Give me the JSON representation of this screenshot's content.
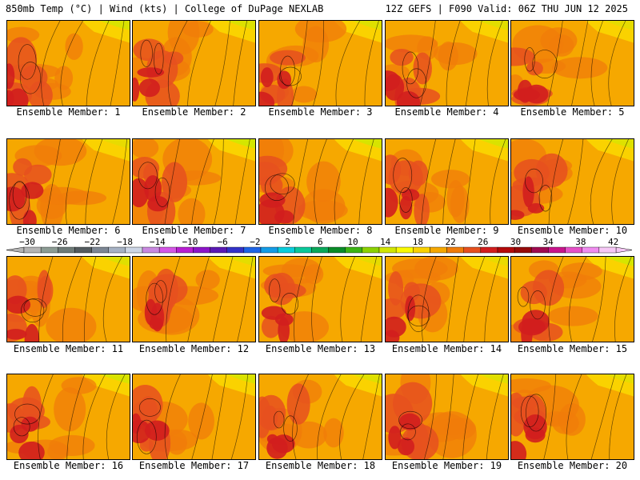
{
  "header": {
    "left": "850mb Temp (°C) | Wind (kts) | College of DuPage NEXLAB",
    "right": "12Z GEFS | F090 Valid: 06Z THU JUN 12 2025"
  },
  "panels": [
    {
      "label": "Ensemble Member: 1"
    },
    {
      "label": "Ensemble Member: 2"
    },
    {
      "label": "Ensemble Member: 3"
    },
    {
      "label": "Ensemble Member: 4"
    },
    {
      "label": "Ensemble Member: 5"
    },
    {
      "label": "Ensemble Member: 6"
    },
    {
      "label": "Ensemble Member: 7"
    },
    {
      "label": "Ensemble Member: 8"
    },
    {
      "label": "Ensemble Member: 9"
    },
    {
      "label": "Ensemble Member: 10"
    },
    {
      "label": "Ensemble Member: 11"
    },
    {
      "label": "Ensemble Member: 12"
    },
    {
      "label": "Ensemble Member: 13"
    },
    {
      "label": "Ensemble Member: 14"
    },
    {
      "label": "Ensemble Member: 15"
    },
    {
      "label": "Ensemble Member: 16"
    },
    {
      "label": "Ensemble Member: 17"
    },
    {
      "label": "Ensemble Member: 18"
    },
    {
      "label": "Ensemble Member: 19"
    },
    {
      "label": "Ensemble Member: 20"
    }
  ],
  "color_scale": {
    "tick_labels": [
      "−30",
      "−26",
      "−22",
      "−18",
      "−14",
      "−10",
      "−6",
      "−2",
      "2",
      "6",
      "10",
      "14",
      "18",
      "22",
      "26",
      "30",
      "34",
      "38",
      "42"
    ],
    "colors": [
      "#b4b4b4",
      "#8c9c94",
      "#6e7a78",
      "#545c60",
      "#7c8694",
      "#a6b2c4",
      "#cdd6e6",
      "#c888e0",
      "#d456e6",
      "#b81ed2",
      "#8c14c8",
      "#5a1ab4",
      "#3232c8",
      "#1e64e6",
      "#149ce6",
      "#0acddc",
      "#0ac89a",
      "#0aa85a",
      "#0a8c28",
      "#3cb414",
      "#8cd200",
      "#d2e600",
      "#fafa00",
      "#fad200",
      "#f6a800",
      "#f07c0a",
      "#e6501e",
      "#d21e1e",
      "#b40a0a",
      "#960a0a",
      "#a00a50",
      "#c8148c",
      "#e650c8",
      "#f08cf0",
      "#f6c8f6"
    ]
  }
}
